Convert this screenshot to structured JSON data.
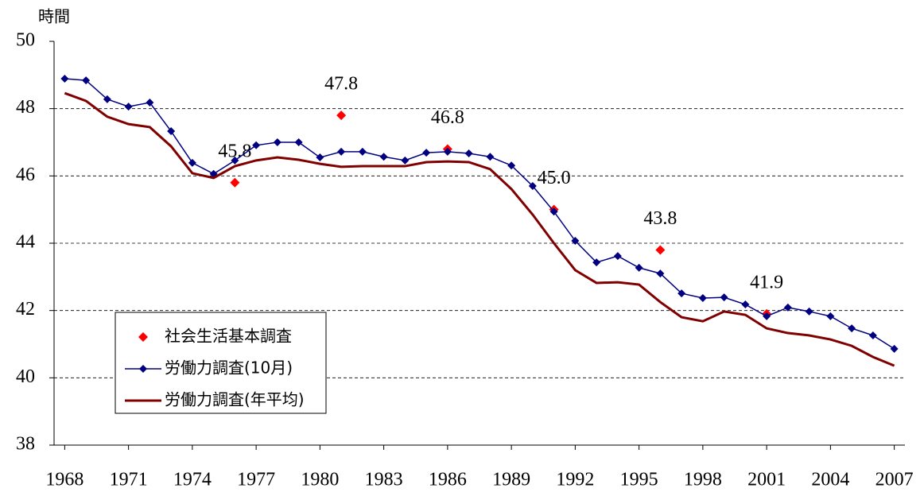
{
  "chart_data": {
    "type": "line",
    "y_label": "時間",
    "x": [
      1968,
      1969,
      1970,
      1971,
      1972,
      1973,
      1974,
      1975,
      1976,
      1977,
      1978,
      1979,
      1980,
      1981,
      1982,
      1983,
      1984,
      1985,
      1986,
      1987,
      1988,
      1989,
      1990,
      1991,
      1992,
      1993,
      1994,
      1995,
      1996,
      1997,
      1998,
      1999,
      2000,
      2001,
      2002,
      2003,
      2004,
      2005,
      2006,
      2007
    ],
    "xlim": [
      1967.5,
      2007.5
    ],
    "xticks": [
      1968,
      1971,
      1974,
      1977,
      1980,
      1983,
      1986,
      1989,
      1992,
      1995,
      1998,
      2001,
      2004,
      2007
    ],
    "ylim": [
      38,
      50
    ],
    "yticks": [
      38,
      40,
      42,
      44,
      46,
      48,
      50
    ],
    "grid": true,
    "legend": "lower left",
    "series": [
      {
        "name": "社会生活基本調査",
        "color": "#ff0000",
        "mode": "markers",
        "values": [
          null,
          null,
          null,
          null,
          null,
          null,
          null,
          null,
          45.8,
          null,
          null,
          null,
          null,
          47.8,
          null,
          null,
          null,
          null,
          46.8,
          null,
          null,
          null,
          null,
          45.0,
          null,
          null,
          null,
          null,
          43.8,
          null,
          null,
          null,
          null,
          41.9,
          null,
          null,
          null,
          null,
          null,
          null
        ],
        "value_labels": [
          null,
          null,
          null,
          null,
          null,
          null,
          null,
          null,
          "45.8",
          null,
          null,
          null,
          null,
          "47.8",
          null,
          null,
          null,
          null,
          "46.8",
          null,
          null,
          null,
          null,
          "45.0",
          null,
          null,
          null,
          null,
          "43.8",
          null,
          null,
          null,
          null,
          "41.9",
          null,
          null,
          null,
          null,
          null,
          null
        ]
      },
      {
        "name": "労働力調査(10月)",
        "color": "#000080",
        "mode": "lines+markers",
        "values": [
          48.89,
          48.84,
          48.28,
          48.06,
          48.18,
          47.33,
          46.39,
          46.06,
          46.46,
          46.91,
          47.0,
          47.0,
          46.55,
          46.72,
          46.72,
          46.57,
          46.46,
          46.69,
          46.72,
          46.67,
          46.57,
          46.31,
          45.7,
          44.94,
          44.07,
          43.43,
          43.62,
          43.27,
          43.1,
          42.51,
          42.37,
          42.39,
          42.18,
          41.83,
          42.09,
          41.97,
          41.83,
          41.47,
          41.26,
          40.86
        ]
      },
      {
        "name": "労働力調査(年平均)",
        "color": "#800000",
        "mode": "lines",
        "values": [
          48.46,
          48.23,
          47.76,
          47.54,
          47.45,
          46.88,
          46.08,
          45.94,
          46.29,
          46.46,
          46.55,
          46.48,
          46.36,
          46.27,
          46.29,
          46.29,
          46.29,
          46.41,
          46.43,
          46.41,
          46.2,
          45.61,
          44.85,
          44.0,
          43.2,
          42.82,
          42.84,
          42.77,
          42.25,
          41.8,
          41.68,
          41.97,
          41.87,
          41.47,
          41.33,
          41.26,
          41.14,
          40.95,
          40.62,
          40.36
        ]
      }
    ]
  }
}
